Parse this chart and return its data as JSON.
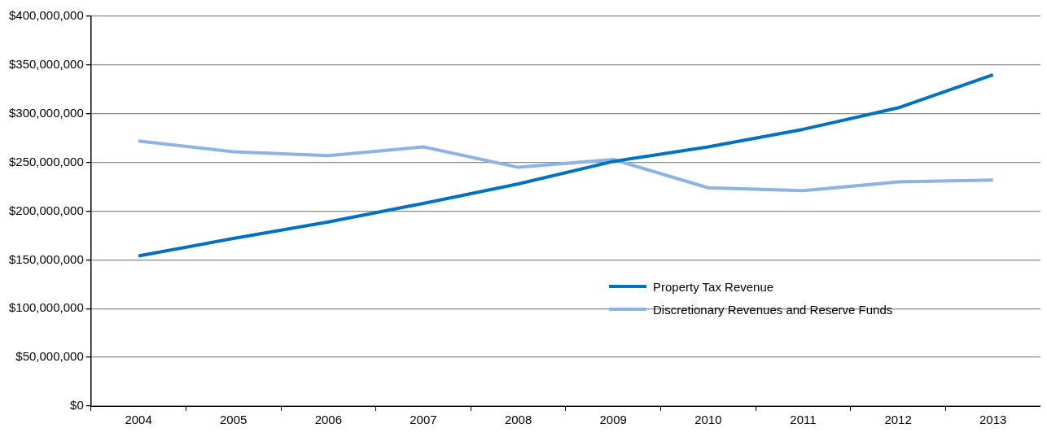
{
  "chart_data": {
    "type": "line",
    "categories": [
      "2004",
      "2005",
      "2006",
      "2007",
      "2008",
      "2009",
      "2010",
      "2011",
      "2012",
      "2013"
    ],
    "series": [
      {
        "name": "Property Tax Revenue",
        "color": "#0070c0",
        "values": [
          154000000,
          172000000,
          189000000,
          208000000,
          228000000,
          251000000,
          266000000,
          284000000,
          306000000,
          340000000
        ]
      },
      {
        "name": "Discretionary Revenues and Reserve Funds",
        "color": "#8db3e2",
        "values": [
          272000000,
          261000000,
          257000000,
          266000000,
          245000000,
          253000000,
          224000000,
          221000000,
          230000000,
          232000000
        ]
      }
    ],
    "ylim": [
      0,
      400000000
    ],
    "yticks": [
      {
        "value": 0,
        "label": "$0"
      },
      {
        "value": 50000000,
        "label": "$50,000,000"
      },
      {
        "value": 100000000,
        "label": "$100,000,000"
      },
      {
        "value": 150000000,
        "label": "$150,000,000"
      },
      {
        "value": 200000000,
        "label": "$200,000,000"
      },
      {
        "value": 250000000,
        "label": "$250,000,000"
      },
      {
        "value": 300000000,
        "label": "$300,000,000"
      },
      {
        "value": 350000000,
        "label": "$350,000,000"
      },
      {
        "value": 400000000,
        "label": "$400,000,000"
      }
    ],
    "grid": "y",
    "legend": "right",
    "marker": "none",
    "line_style": "solid"
  }
}
